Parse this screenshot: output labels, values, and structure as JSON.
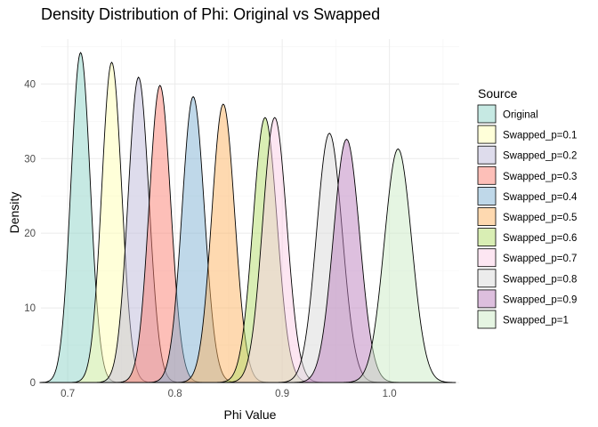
{
  "chart_data": {
    "type": "area",
    "title": "Density Distribution of Phi: Original vs Swapped",
    "xlabel": "Phi Value",
    "ylabel": "Density",
    "xlim": [
      0.675,
      1.065
    ],
    "ylim": [
      0,
      46
    ],
    "xticks": [
      "0.7",
      "0.8",
      "0.9",
      "1.0"
    ],
    "xtick_values": [
      0.7,
      0.8,
      0.9,
      1.0
    ],
    "yticks": [
      "0",
      "10",
      "20",
      "30",
      "40"
    ],
    "ytick_values": [
      0,
      10,
      20,
      30,
      40
    ],
    "grid": true,
    "legend": {
      "title": "Source",
      "position": "right"
    },
    "series": [
      {
        "name": "Original",
        "mean": 0.712,
        "peak": 44.2,
        "color": "#8DD3C7"
      },
      {
        "name": "Swapped_p=0.1",
        "mean": 0.741,
        "peak": 42.9,
        "color": "#FFFFB3"
      },
      {
        "name": "Swapped_p=0.2",
        "mean": 0.766,
        "peak": 40.9,
        "color": "#BEBADA"
      },
      {
        "name": "Swapped_p=0.3",
        "mean": 0.786,
        "peak": 39.8,
        "color": "#FB8072"
      },
      {
        "name": "Swapped_p=0.4",
        "mean": 0.817,
        "peak": 38.3,
        "color": "#80B1D3"
      },
      {
        "name": "Swapped_p=0.5",
        "mean": 0.845,
        "peak": 37.3,
        "color": "#FDB462"
      },
      {
        "name": "Swapped_p=0.6",
        "mean": 0.884,
        "peak": 35.5,
        "color": "#B3DE69"
      },
      {
        "name": "Swapped_p=0.7",
        "mean": 0.893,
        "peak": 35.5,
        "color": "#FCCDE5"
      },
      {
        "name": "Swapped_p=0.8",
        "mean": 0.944,
        "peak": 33.4,
        "color": "#D9D9D9"
      },
      {
        "name": "Swapped_p=0.9",
        "mean": 0.96,
        "peak": 32.6,
        "color": "#BC80BD"
      },
      {
        "name": "Swapped_p=1",
        "mean": 1.008,
        "peak": 31.3,
        "color": "#CCEBC5"
      }
    ]
  }
}
